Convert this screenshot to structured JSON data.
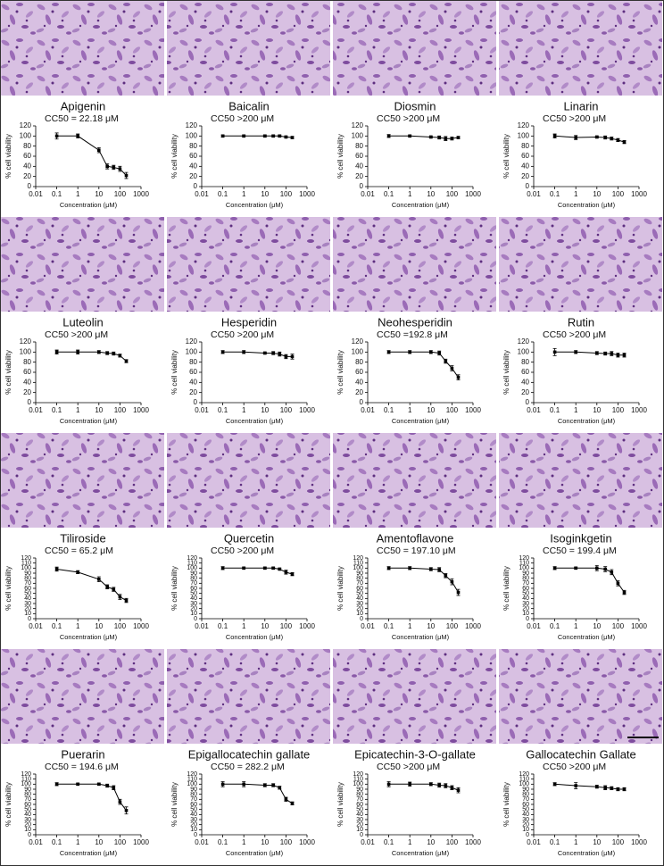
{
  "chart_data": [
    {
      "type": "line",
      "title": "Apigenin",
      "annotation": "CC50 = 22.18 μM",
      "xlabel": "Concentration (μM)",
      "ylabel": "% cell viability",
      "x": [
        0.1,
        1,
        10,
        25,
        50,
        100,
        200
      ],
      "values": [
        100,
        100,
        72,
        40,
        38,
        35,
        22
      ],
      "errors": [
        6,
        4,
        5,
        5,
        4,
        5,
        6
      ],
      "xlim": [
        0.01,
        1000
      ],
      "xticks": [
        0.01,
        0.1,
        1,
        10,
        100,
        1000
      ],
      "ylim": [
        0,
        120
      ],
      "yticks": [
        0,
        20,
        40,
        60,
        80,
        100,
        120
      ],
      "log_x": true,
      "color": "#000000"
    },
    {
      "type": "line",
      "title": "Baicalin",
      "annotation": "CC50 >200 μM",
      "xlabel": "Concentration (μM)",
      "ylabel": "% cell viability",
      "x": [
        0.1,
        1,
        10,
        25,
        50,
        100,
        200
      ],
      "values": [
        100,
        100,
        100,
        100,
        100,
        98,
        97
      ],
      "errors": [
        2,
        2,
        2,
        2,
        2,
        2,
        2
      ],
      "xlim": [
        0.01,
        1000
      ],
      "xticks": [
        0.01,
        0.1,
        1,
        10,
        100,
        1000
      ],
      "ylim": [
        0,
        120
      ],
      "yticks": [
        0,
        20,
        40,
        60,
        80,
        100,
        120
      ],
      "log_x": true,
      "color": "#000000"
    },
    {
      "type": "line",
      "title": "Diosmin",
      "annotation": "CC50 >200 μM",
      "xlabel": "Concentration (μM)",
      "ylabel": "% cell viability",
      "x": [
        0.1,
        1,
        10,
        25,
        50,
        100,
        200
      ],
      "values": [
        100,
        100,
        98,
        97,
        95,
        95,
        97
      ],
      "errors": [
        3,
        2,
        2,
        3,
        4,
        3,
        2
      ],
      "xlim": [
        0.01,
        1000
      ],
      "xticks": [
        0.01,
        0.1,
        1,
        10,
        100,
        1000
      ],
      "ylim": [
        0,
        120
      ],
      "yticks": [
        0,
        20,
        40,
        60,
        80,
        100,
        120
      ],
      "log_x": true,
      "color": "#000000"
    },
    {
      "type": "line",
      "title": "Linarin",
      "annotation": "CC50 >200 μM",
      "xlabel": "Concentration (μM)",
      "ylabel": "% cell viability",
      "x": [
        0.1,
        1,
        10,
        25,
        50,
        100,
        200
      ],
      "values": [
        100,
        97,
        98,
        97,
        95,
        92,
        88
      ],
      "errors": [
        4,
        4,
        2,
        3,
        3,
        3,
        3
      ],
      "xlim": [
        0.01,
        1000
      ],
      "xticks": [
        0.01,
        0.1,
        1,
        10,
        100,
        1000
      ],
      "ylim": [
        0,
        120
      ],
      "yticks": [
        0,
        20,
        40,
        60,
        80,
        100,
        120
      ],
      "log_x": true,
      "color": "#000000"
    },
    {
      "type": "line",
      "title": "Luteolin",
      "annotation": "CC50 >200 μM",
      "xlabel": "Concentration (μM)",
      "ylabel": "% cell viability",
      "x": [
        0.1,
        1,
        10,
        25,
        50,
        100,
        200
      ],
      "values": [
        100,
        100,
        100,
        98,
        97,
        93,
        82
      ],
      "errors": [
        4,
        4,
        3,
        3,
        3,
        3,
        3
      ],
      "xlim": [
        0.01,
        1000
      ],
      "xticks": [
        0.01,
        0.1,
        1,
        10,
        100,
        1000
      ],
      "ylim": [
        0,
        120
      ],
      "yticks": [
        0,
        20,
        40,
        60,
        80,
        100,
        120
      ],
      "log_x": true,
      "color": "#000000"
    },
    {
      "type": "line",
      "title": "Hesperidin",
      "annotation": "CC50 >200 μM",
      "xlabel": "Concentration (μM)",
      "ylabel": "% cell viability",
      "x": [
        0.1,
        1,
        10,
        25,
        50,
        100,
        200
      ],
      "values": [
        100,
        100,
        98,
        98,
        96,
        91,
        91
      ],
      "errors": [
        3,
        3,
        2,
        3,
        4,
        4,
        5
      ],
      "xlim": [
        0.01,
        1000
      ],
      "xticks": [
        0.01,
        0.1,
        1,
        10,
        100,
        1000
      ],
      "ylim": [
        0,
        120
      ],
      "yticks": [
        0,
        20,
        40,
        60,
        80,
        100,
        120
      ],
      "log_x": true,
      "color": "#000000"
    },
    {
      "type": "line",
      "title": "Neohesperidin",
      "annotation": "CC50 =192.8 μM",
      "xlabel": "Concentration (μM)",
      "ylabel": "% cell viability",
      "x": [
        0.1,
        1,
        10,
        25,
        50,
        100,
        200
      ],
      "values": [
        100,
        100,
        100,
        98,
        82,
        68,
        50
      ],
      "errors": [
        3,
        3,
        3,
        4,
        4,
        5,
        5
      ],
      "xlim": [
        0.01,
        1000
      ],
      "xticks": [
        0.01,
        0.1,
        1,
        10,
        100,
        1000
      ],
      "ylim": [
        0,
        120
      ],
      "yticks": [
        0,
        20,
        40,
        60,
        80,
        100,
        120
      ],
      "log_x": true,
      "color": "#000000"
    },
    {
      "type": "line",
      "title": "Rutin",
      "annotation": "CC50 >200 μM",
      "xlabel": "Concentration (μM)",
      "ylabel": "% cell viability",
      "x": [
        0.1,
        1,
        10,
        25,
        50,
        100,
        200
      ],
      "values": [
        100,
        100,
        98,
        97,
        97,
        94,
        94
      ],
      "errors": [
        7,
        3,
        3,
        3,
        4,
        4,
        4
      ],
      "xlim": [
        0.01,
        1000
      ],
      "xticks": [
        0.01,
        0.1,
        1,
        10,
        100,
        1000
      ],
      "ylim": [
        0,
        120
      ],
      "yticks": [
        0,
        20,
        40,
        60,
        80,
        100,
        120
      ],
      "log_x": true,
      "color": "#000000"
    },
    {
      "type": "line",
      "title": "Tiliroside",
      "annotation": "CC50 = 65.2 μM",
      "xlabel": "Concentration (μM)",
      "ylabel": "% cell viability",
      "x": [
        0.1,
        1,
        10,
        25,
        50,
        100,
        200
      ],
      "values": [
        98,
        92,
        78,
        63,
        58,
        43,
        36
      ],
      "errors": [
        4,
        3,
        5,
        4,
        4,
        5,
        4
      ],
      "xlim": [
        0.01,
        1000
      ],
      "xticks": [
        0.01,
        0.1,
        1,
        10,
        100,
        1000
      ],
      "ylim": [
        0,
        120
      ],
      "yticks": [
        0,
        10,
        20,
        30,
        40,
        50,
        60,
        70,
        80,
        90,
        100,
        110,
        120
      ],
      "log_x": true,
      "color": "#000000"
    },
    {
      "type": "line",
      "title": "Quercetin",
      "annotation": "CC50 >200 μM",
      "xlabel": "Concentration (μM)",
      "ylabel": "% cell viability",
      "x": [
        0.1,
        1,
        10,
        25,
        50,
        100,
        200
      ],
      "values": [
        100,
        100,
        100,
        100,
        98,
        92,
        88
      ],
      "errors": [
        3,
        2,
        2,
        2,
        2,
        4,
        3
      ],
      "xlim": [
        0.01,
        1000
      ],
      "xticks": [
        0.01,
        0.1,
        1,
        10,
        100,
        1000
      ],
      "ylim": [
        0,
        120
      ],
      "yticks": [
        0,
        10,
        20,
        30,
        40,
        50,
        60,
        70,
        80,
        90,
        100,
        110,
        120
      ],
      "log_x": true,
      "color": "#000000"
    },
    {
      "type": "line",
      "title": "Amentoflavone",
      "annotation": "CC50 = 197.10 μM",
      "xlabel": "Concentration (μM)",
      "ylabel": "% cell viability",
      "x": [
        0.1,
        1,
        10,
        25,
        50,
        100,
        200
      ],
      "values": [
        100,
        100,
        98,
        97,
        85,
        73,
        52
      ],
      "errors": [
        3,
        3,
        3,
        4,
        4,
        6,
        6
      ],
      "xlim": [
        0.01,
        1000
      ],
      "xticks": [
        0.01,
        0.1,
        1,
        10,
        100,
        1000
      ],
      "ylim": [
        0,
        120
      ],
      "yticks": [
        0,
        10,
        20,
        30,
        40,
        50,
        60,
        70,
        80,
        90,
        100,
        110,
        120
      ],
      "log_x": true,
      "color": "#000000"
    },
    {
      "type": "line",
      "title": "Isoginkgetin",
      "annotation": "CC50 = 199.4 μM",
      "xlabel": "Concentration (μM)",
      "ylabel": "% cell viability",
      "x": [
        0.1,
        1,
        10,
        25,
        50,
        100,
        200
      ],
      "values": [
        100,
        100,
        100,
        98,
        92,
        70,
        52
      ],
      "errors": [
        3,
        2,
        5,
        5,
        5,
        5,
        4
      ],
      "xlim": [
        0.01,
        1000
      ],
      "xticks": [
        0.01,
        0.1,
        1,
        10,
        100,
        1000
      ],
      "ylim": [
        0,
        120
      ],
      "yticks": [
        0,
        10,
        20,
        30,
        40,
        50,
        60,
        70,
        80,
        90,
        100,
        110,
        120
      ],
      "log_x": true,
      "color": "#000000"
    },
    {
      "type": "line",
      "title": "Puerarin",
      "annotation": "CC50 = 194.6 μM",
      "xlabel": "Concentration (μM)",
      "ylabel": "% cell viability",
      "x": [
        0.1,
        1,
        10,
        25,
        50,
        100,
        200
      ],
      "values": [
        100,
        100,
        100,
        97,
        93,
        65,
        48
      ],
      "errors": [
        3,
        2,
        2,
        3,
        4,
        5,
        7
      ],
      "xlim": [
        0.01,
        1000
      ],
      "xticks": [
        0.01,
        0.1,
        1,
        10,
        100,
        1000
      ],
      "ylim": [
        0,
        120
      ],
      "yticks": [
        0,
        10,
        20,
        30,
        40,
        50,
        60,
        70,
        80,
        90,
        100,
        110,
        120
      ],
      "log_x": true,
      "color": "#000000"
    },
    {
      "type": "line",
      "title": "Epigallocatechin gallate",
      "annotation": "CC50 = 282.2 μM",
      "xlabel": "Concentration (μM)",
      "ylabel": "% cell viability",
      "x": [
        0.1,
        1,
        10,
        25,
        50,
        100,
        200
      ],
      "values": [
        100,
        100,
        98,
        98,
        93,
        70,
        62
      ],
      "errors": [
        5,
        5,
        3,
        3,
        3,
        4,
        3
      ],
      "xlim": [
        0.01,
        1000
      ],
      "xticks": [
        0.01,
        0.1,
        1,
        10,
        100,
        1000
      ],
      "ylim": [
        0,
        120
      ],
      "yticks": [
        0,
        10,
        20,
        30,
        40,
        50,
        60,
        70,
        80,
        90,
        100,
        110,
        120
      ],
      "log_x": true,
      "color": "#000000"
    },
    {
      "type": "line",
      "title": "Epicatechin-3-O-gallate",
      "annotation": "CC50 >200 μM",
      "xlabel": "Concentration (μM)",
      "ylabel": "% cell viability",
      "x": [
        0.1,
        1,
        10,
        25,
        50,
        100,
        200
      ],
      "values": [
        100,
        100,
        100,
        98,
        97,
        93,
        88
      ],
      "errors": [
        5,
        4,
        3,
        4,
        4,
        4,
        5
      ],
      "xlim": [
        0.01,
        1000
      ],
      "xticks": [
        0.01,
        0.1,
        1,
        10,
        100,
        1000
      ],
      "ylim": [
        0,
        120
      ],
      "yticks": [
        0,
        10,
        20,
        30,
        40,
        50,
        60,
        70,
        80,
        90,
        100,
        110,
        120
      ],
      "log_x": true,
      "color": "#000000"
    },
    {
      "type": "line",
      "title": "Gallocatechin Gallate",
      "annotation": "CC50 >200 μM",
      "xlabel": "Concentration (μM)",
      "ylabel": "% cell viability",
      "x": [
        0.1,
        1,
        10,
        25,
        50,
        100,
        200
      ],
      "values": [
        100,
        97,
        95,
        93,
        92,
        90,
        90
      ],
      "errors": [
        3,
        6,
        3,
        4,
        3,
        3,
        3
      ],
      "xlim": [
        0.01,
        1000
      ],
      "xticks": [
        0.01,
        0.1,
        1,
        10,
        100,
        1000
      ],
      "ylim": [
        0,
        120
      ],
      "yticks": [
        0,
        10,
        20,
        30,
        40,
        50,
        60,
        70,
        80,
        90,
        100,
        110,
        120
      ],
      "log_x": true,
      "color": "#000000"
    }
  ]
}
